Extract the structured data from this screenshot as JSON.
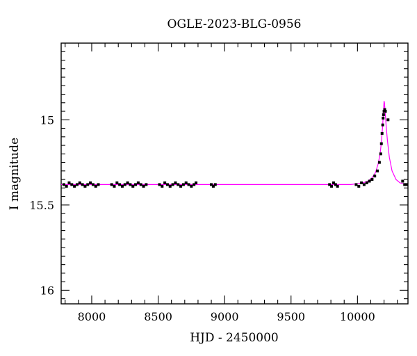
{
  "chart_data": {
    "type": "scatter",
    "title": "OGLE-2023-BLG-0956",
    "xlabel": "HJD - 2450000",
    "ylabel": "I magnitude",
    "xlim": [
      7770,
      10380
    ],
    "ylim": [
      16.08,
      14.55
    ],
    "y_inverted": true,
    "x_ticks": [
      8000,
      8500,
      9000,
      9500,
      10000
    ],
    "x_tick_labels": [
      "8000",
      "8500",
      "9000",
      "9500",
      "10000"
    ],
    "y_ticks": [
      15,
      15.5,
      16
    ],
    "y_tick_labels": [
      "15",
      "15.5",
      "16"
    ],
    "grid": false,
    "colors": {
      "data": "#000000",
      "model": "#ff00ff"
    },
    "baseline_mag": 15.38,
    "series": [
      {
        "kind": "observations",
        "points": [
          [
            7790,
            15.38
          ],
          [
            7810,
            15.39
          ],
          [
            7830,
            15.37
          ],
          [
            7850,
            15.38
          ],
          [
            7870,
            15.39
          ],
          [
            7890,
            15.38
          ],
          [
            7910,
            15.37
          ],
          [
            7930,
            15.38
          ],
          [
            7950,
            15.39
          ],
          [
            7970,
            15.38
          ],
          [
            7990,
            15.37
          ],
          [
            8010,
            15.38
          ],
          [
            8030,
            15.39
          ],
          [
            8050,
            15.38
          ],
          [
            8150,
            15.38
          ],
          [
            8170,
            15.39
          ],
          [
            8190,
            15.37
          ],
          [
            8210,
            15.38
          ],
          [
            8230,
            15.39
          ],
          [
            8250,
            15.38
          ],
          [
            8270,
            15.37
          ],
          [
            8290,
            15.38
          ],
          [
            8310,
            15.39
          ],
          [
            8330,
            15.38
          ],
          [
            8350,
            15.37
          ],
          [
            8370,
            15.38
          ],
          [
            8390,
            15.39
          ],
          [
            8410,
            15.38
          ],
          [
            8510,
            15.38
          ],
          [
            8530,
            15.39
          ],
          [
            8550,
            15.37
          ],
          [
            8570,
            15.38
          ],
          [
            8590,
            15.39
          ],
          [
            8610,
            15.38
          ],
          [
            8630,
            15.37
          ],
          [
            8650,
            15.38
          ],
          [
            8670,
            15.39
          ],
          [
            8690,
            15.38
          ],
          [
            8710,
            15.37
          ],
          [
            8730,
            15.38
          ],
          [
            8750,
            15.39
          ],
          [
            8770,
            15.38
          ],
          [
            8785,
            15.37
          ],
          [
            8900,
            15.38
          ],
          [
            8915,
            15.39
          ],
          [
            8930,
            15.38
          ],
          [
            9790,
            15.38
          ],
          [
            9805,
            15.39
          ],
          [
            9820,
            15.37
          ],
          [
            9835,
            15.38
          ],
          [
            9850,
            15.39
          ],
          [
            9990,
            15.38
          ],
          [
            10010,
            15.39
          ],
          [
            10030,
            15.37
          ],
          [
            10050,
            15.38
          ],
          [
            10070,
            15.37
          ],
          [
            10090,
            15.36
          ],
          [
            10110,
            15.35
          ],
          [
            10130,
            15.33
          ],
          [
            10150,
            15.3
          ],
          [
            10165,
            15.25
          ],
          [
            10175,
            15.2
          ],
          [
            10180,
            15.14
          ],
          [
            10185,
            15.08
          ],
          [
            10190,
            15.03
          ],
          [
            10193,
            14.99
          ],
          [
            10196,
            14.97
          ],
          [
            10200,
            14.95
          ],
          [
            10205,
            14.94
          ],
          [
            10210,
            14.95
          ],
          [
            10230,
            15.0
          ],
          [
            10340,
            15.36
          ],
          [
            10355,
            15.38
          ],
          [
            10370,
            15.38
          ]
        ]
      },
      {
        "kind": "model",
        "peak_x": 10200,
        "peak_mag": 14.89,
        "points": [
          [
            7770,
            15.38
          ],
          [
            9800,
            15.38
          ],
          [
            9950,
            15.38
          ],
          [
            10000,
            15.375
          ],
          [
            10040,
            15.37
          ],
          [
            10080,
            15.36
          ],
          [
            10110,
            15.34
          ],
          [
            10135,
            15.31
          ],
          [
            10155,
            15.26
          ],
          [
            10170,
            15.2
          ],
          [
            10180,
            15.13
          ],
          [
            10188,
            15.05
          ],
          [
            10194,
            14.98
          ],
          [
            10198,
            14.92
          ],
          [
            10200,
            14.89
          ],
          [
            10203,
            14.9
          ],
          [
            10208,
            14.95
          ],
          [
            10215,
            15.03
          ],
          [
            10225,
            15.12
          ],
          [
            10240,
            15.22
          ],
          [
            10260,
            15.3
          ],
          [
            10290,
            15.35
          ],
          [
            10320,
            15.37
          ],
          [
            10380,
            15.38
          ]
        ]
      }
    ]
  }
}
